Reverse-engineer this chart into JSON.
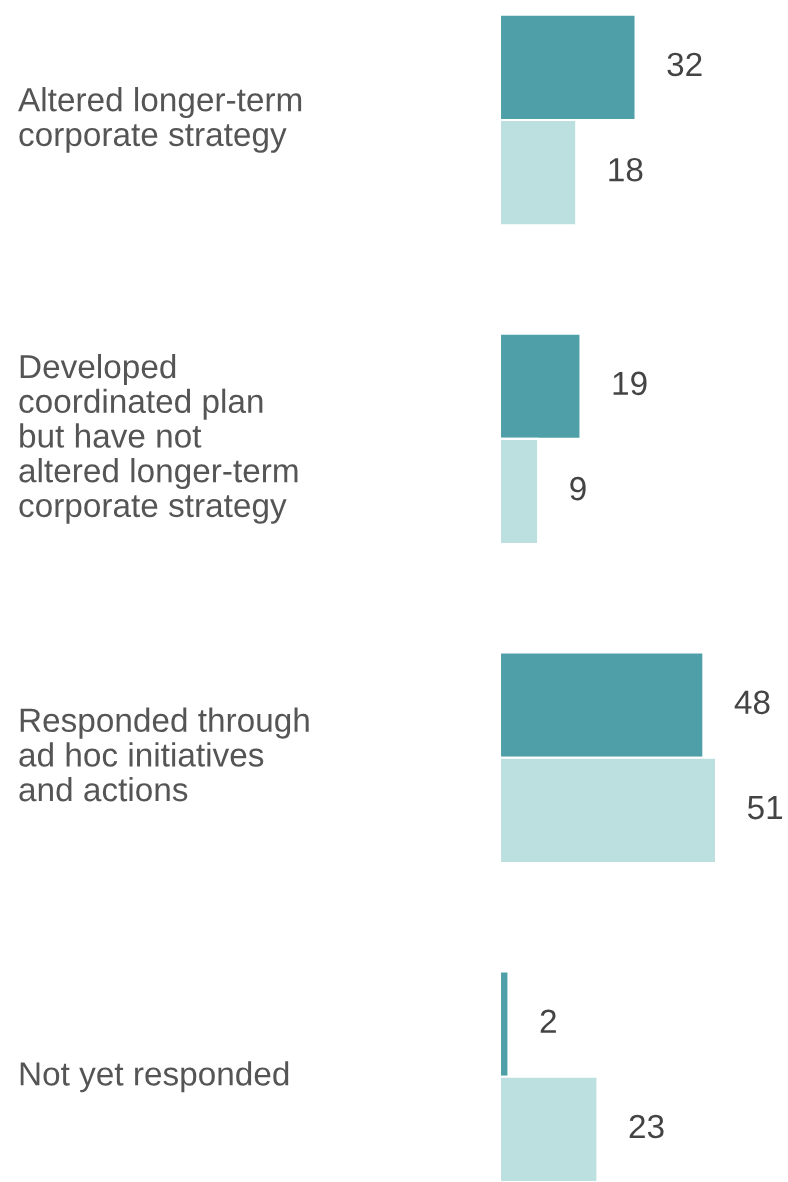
{
  "chart_data": {
    "type": "bar",
    "orientation": "horizontal",
    "categories": [
      "Altered longer-term\ncorporate strategy",
      "Developed\ncoordinated plan\nbut have not\naltered longer-term\ncorporate strategy",
      "Responded through\nad hoc initiatives\nand actions",
      "Not yet responded"
    ],
    "series": [
      {
        "color": "#4e9fa8",
        "values": [
          32,
          19,
          48,
          2
        ]
      },
      {
        "color": "#bcdfe0",
        "values": [
          18,
          9,
          51,
          23
        ]
      }
    ],
    "data_labels": true
  }
}
